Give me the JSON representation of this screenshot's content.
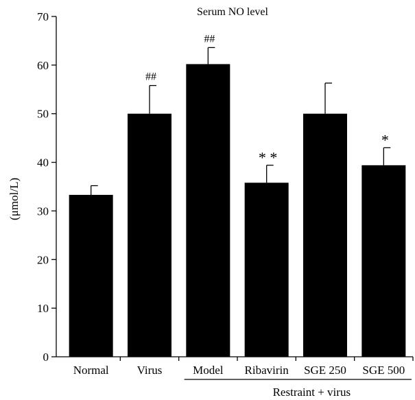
{
  "chart_data": {
    "type": "bar",
    "title": "Serum NO level",
    "ylabel": "(μmol/L)",
    "xlabel": "",
    "ylim": [
      0,
      70
    ],
    "yticks": [
      0,
      10,
      20,
      30,
      40,
      50,
      60,
      70
    ],
    "categories": [
      "Normal",
      "Virus",
      "Model",
      "Ribavirin",
      "SGE 250",
      "SGE 500"
    ],
    "values": [
      33.3,
      50.0,
      60.2,
      35.8,
      50.0,
      39.4
    ],
    "errors": [
      1.9,
      5.8,
      3.4,
      3.6,
      6.3,
      3.6
    ],
    "significance": [
      "",
      "##",
      "##",
      "**",
      "",
      "*"
    ],
    "group_label": "Restraint + virus",
    "bar_color": "#000000",
    "grid": false,
    "legend": "none"
  }
}
